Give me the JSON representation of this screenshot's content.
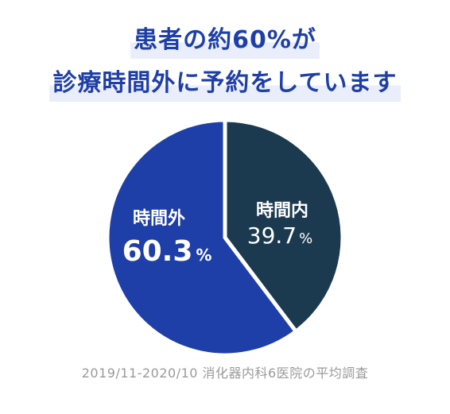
{
  "title": {
    "line1": "患者の約60%が",
    "line2": "診療時間外に予約をしています"
  },
  "chart_data": {
    "type": "pie",
    "slices": [
      {
        "label": "時間内",
        "value": 39.7,
        "value_text": "39.7",
        "unit": "%",
        "color": "#1c3a4f"
      },
      {
        "label": "時間外",
        "value": 60.3,
        "value_text": "60.3",
        "unit": "%",
        "color": "#1f3fa8"
      }
    ]
  },
  "footnote": "2019/11-2020/10 消化器内科6医院の平均調査"
}
